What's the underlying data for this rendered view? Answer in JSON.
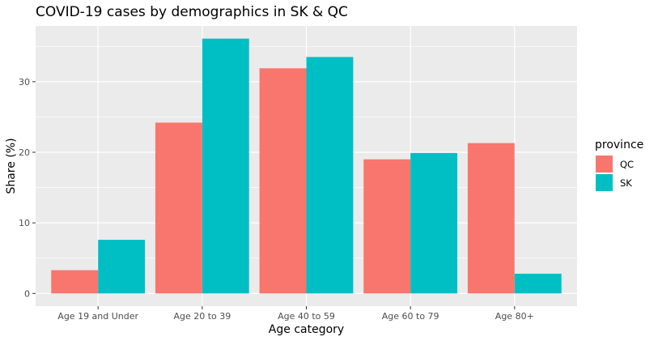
{
  "chart_data": {
    "type": "bar",
    "title": "COVID-19 cases by demographics in SK & QC",
    "xlabel": "Age category",
    "ylabel": "Share (%)",
    "categories": [
      "Age 19 and Under",
      "Age 20 to 39",
      "Age 40 to 59",
      "Age 60 to 79",
      "Age 80+"
    ],
    "series": [
      {
        "name": "QC",
        "values": [
          3.3,
          24.2,
          31.9,
          19.0,
          21.3
        ],
        "color": "#F8766D"
      },
      {
        "name": "SK",
        "values": [
          7.6,
          36.1,
          33.5,
          19.9,
          2.8
        ],
        "color": "#00BFC4"
      }
    ],
    "ylim": [
      -1.8,
      37.9
    ],
    "yticks": [
      0,
      10,
      20,
      30
    ],
    "grid": true,
    "legend": {
      "title": "province",
      "position": "right"
    }
  }
}
